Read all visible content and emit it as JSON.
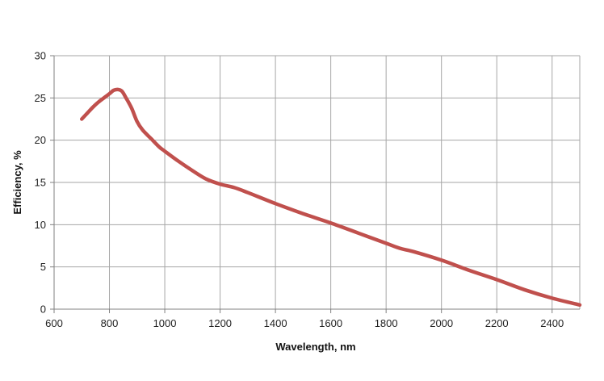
{
  "chart_data": {
    "type": "line",
    "title": "",
    "xlabel": "Wavelength, nm",
    "ylabel": "Efficiency, %",
    "xlim": [
      600,
      2500
    ],
    "ylim": [
      0,
      30
    ],
    "xticks": [
      600,
      800,
      1000,
      1200,
      1400,
      1600,
      1800,
      2000,
      2200,
      2400
    ],
    "yticks": [
      0,
      5,
      10,
      15,
      20,
      25,
      30
    ],
    "grid": true,
    "legend": "none",
    "series": [
      {
        "color": "#c0504d",
        "x": [
          700,
          720,
          740,
          760,
          780,
          800,
          815,
          830,
          845,
          860,
          880,
          900,
          920,
          950,
          980,
          1000,
          1050,
          1100,
          1150,
          1200,
          1250,
          1300,
          1400,
          1500,
          1600,
          1700,
          1800,
          1850,
          1900,
          2000,
          2100,
          2200,
          2300,
          2400,
          2500
        ],
        "y": [
          22.5,
          23.2,
          23.9,
          24.5,
          25.0,
          25.5,
          25.9,
          26.0,
          25.8,
          25.0,
          23.8,
          22.2,
          21.2,
          20.2,
          19.2,
          18.7,
          17.5,
          16.4,
          15.4,
          14.8,
          14.4,
          13.8,
          12.5,
          11.3,
          10.2,
          9.0,
          7.8,
          7.2,
          6.8,
          5.8,
          4.6,
          3.5,
          2.3,
          1.3,
          0.5
        ]
      }
    ]
  }
}
